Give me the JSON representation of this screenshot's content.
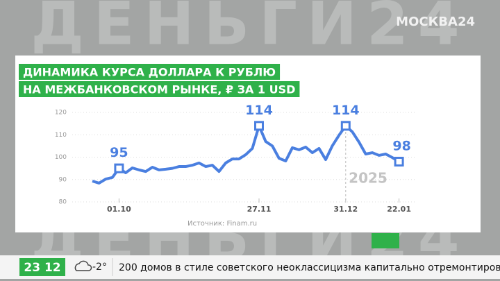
{
  "channel_logo": "МОСКВА24",
  "watermark": "ДЕНЬГИ24",
  "ticker": {
    "time": "23 12",
    "weather": "-2°",
    "headline": "200 домов в стиле советского неоклассицизма капитально отремонтировали"
  },
  "chart_data": {
    "type": "line",
    "title": [
      "ДИНАМИКА КУРСА ДОЛЛАРА К РУБЛЮ",
      "НА МЕЖБАНКОВСКОМ РЫНКЕ, ₽ ЗА 1 USD"
    ],
    "categories": [
      null,
      null,
      null,
      null,
      "01.10",
      null,
      null,
      null,
      null,
      null,
      null,
      null,
      null,
      null,
      null,
      null,
      null,
      null,
      null,
      null,
      null,
      null,
      null,
      null,
      null,
      "27.11",
      null,
      null,
      null,
      null,
      null,
      null,
      null,
      null,
      null,
      null,
      null,
      null,
      "31.12",
      null,
      null,
      null,
      null,
      null,
      null,
      null,
      "22.01"
    ],
    "series": [
      {
        "name": "USD",
        "color": "#4a7fe0",
        "values": [
          89.3,
          88.4,
          90.2,
          90.9,
          95,
          93,
          95.2,
          94.3,
          93.6,
          95.5,
          94.3,
          94.6,
          95,
          95.8,
          95.8,
          96.4,
          97.4,
          95.8,
          96.4,
          93.6,
          97.4,
          99.2,
          99.2,
          101.1,
          103.9,
          114,
          107,
          105,
          99.5,
          98.3,
          104.2,
          103.3,
          104.5,
          102,
          103.9,
          98.9,
          105.1,
          109.8,
          114,
          111.3,
          106.7,
          101.4,
          102,
          100.8,
          101.4,
          99.8,
          98
        ],
        "value_labels": [
          null,
          null,
          null,
          null,
          "95",
          null,
          null,
          null,
          null,
          null,
          null,
          null,
          null,
          null,
          null,
          null,
          null,
          null,
          null,
          null,
          null,
          null,
          null,
          null,
          null,
          "114",
          null,
          null,
          null,
          null,
          null,
          null,
          null,
          null,
          null,
          null,
          null,
          null,
          "114",
          null,
          null,
          null,
          null,
          null,
          null,
          null,
          "98"
        ]
      }
    ],
    "ylim": [
      80,
      120
    ],
    "yticks": [
      80,
      90,
      100,
      110,
      120
    ],
    "grid": true,
    "annotations": [
      "2025"
    ],
    "source": "Источник: Finam.ru"
  }
}
